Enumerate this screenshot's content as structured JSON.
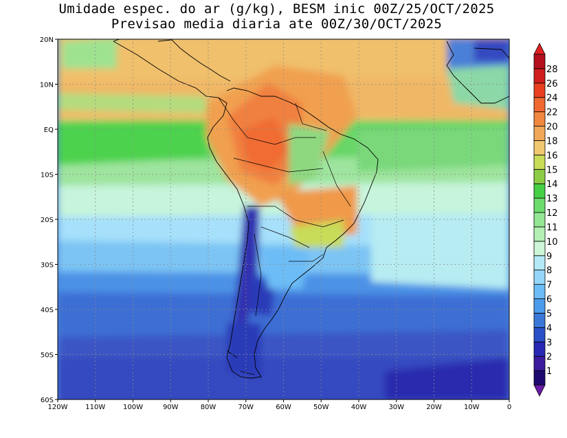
{
  "title": {
    "line1": "Umidade espec. do ar (g/kg), BESM inic 00Z/25/OCT/2025",
    "line2": "Previsao media diaria ate 00Z/30/OCT/2025"
  },
  "map": {
    "lat_labels": [
      "20N",
      "10N",
      "EQ",
      "10S",
      "20S",
      "30S",
      "40S",
      "50S",
      "60S"
    ],
    "lon_labels": [
      "120W",
      "110W",
      "100W",
      "90W",
      "80W",
      "70W",
      "60W",
      "50W",
      "40W",
      "30W",
      "20W",
      "10W",
      "0"
    ]
  },
  "colorbar": {
    "levels": [
      "1",
      "2",
      "3",
      "4",
      "5",
      "6",
      "7",
      "8",
      "9",
      "10",
      "11",
      "12",
      "13",
      "14",
      "15",
      "16",
      "18",
      "20",
      "22",
      "24",
      "26",
      "28"
    ],
    "colors": [
      "#1e0a6e",
      "#3c1a9e",
      "#2828b4",
      "#2a50c8",
      "#3a78d8",
      "#4c9cec",
      "#6cbcf6",
      "#96d6fa",
      "#b4eaf8",
      "#cdf6d8",
      "#b4f0b4",
      "#94e694",
      "#6cdc6c",
      "#46d046",
      "#8ccc46",
      "#c8dc58",
      "#f0c870",
      "#f0a858",
      "#f08840",
      "#f06830",
      "#e84020",
      "#d01e1e",
      "#b4101e"
    ],
    "low_tri_color": "#6a1aa8",
    "high_tri_color": "#e02020"
  }
}
